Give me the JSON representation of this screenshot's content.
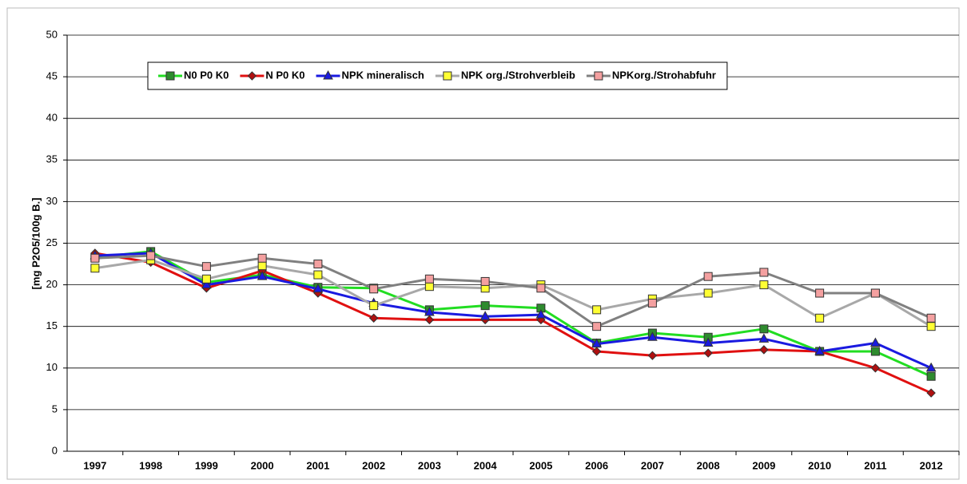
{
  "chart_data": {
    "type": "line",
    "y_label": "[mg P2O5/100g B.]",
    "categories": [
      "1997",
      "1998",
      "1999",
      "2000",
      "2001",
      "2002",
      "2003",
      "2004",
      "2005",
      "2006",
      "2007",
      "2008",
      "2009",
      "2010",
      "2011",
      "2012"
    ],
    "series": [
      {
        "name": "N0 P0 K0",
        "color": "#22dd22",
        "marker_color": "#2e8b2e",
        "marker": "square",
        "values": [
          23.3,
          24,
          20.3,
          21.2,
          19.7,
          19.6,
          17,
          17.5,
          17.2,
          13,
          14.2,
          13.7,
          14.7,
          12,
          12,
          9
        ]
      },
      {
        "name": "N P0 K0",
        "color": "#e01010",
        "marker_color": "#b01010",
        "marker": "diamond",
        "values": [
          23.8,
          22.7,
          19.6,
          21.7,
          19,
          16,
          15.8,
          15.8,
          15.8,
          12,
          11.5,
          11.8,
          12.2,
          12,
          10,
          7
        ]
      },
      {
        "name": "NPK mineralisch",
        "color": "#1a1ae0",
        "marker_color": "#1a1ae0",
        "marker": "triangle",
        "values": [
          23.5,
          23.8,
          20,
          21,
          19.5,
          17.8,
          16.7,
          16.2,
          16.4,
          12.9,
          13.7,
          13,
          13.5,
          12,
          13,
          10
        ]
      },
      {
        "name": "NPK org./Strohverbleib",
        "color": "#a8a8a8",
        "marker_color": "#ffff33",
        "marker": "square",
        "values": [
          22,
          23,
          20.7,
          22.3,
          21.2,
          17.5,
          19.8,
          19.6,
          20,
          17,
          18.3,
          19,
          20,
          16,
          19,
          15
        ]
      },
      {
        "name": "NPKorg./Strohabfuhr",
        "color": "#808080",
        "marker_color": "#f4a0a0",
        "marker": "square",
        "values": [
          23.2,
          23.5,
          22.2,
          23.2,
          22.5,
          19.5,
          20.7,
          20.4,
          19.6,
          15,
          17.8,
          21,
          21.5,
          19,
          19,
          16
        ]
      }
    ],
    "ylim": [
      0,
      50
    ],
    "yticks": [
      0,
      5,
      10,
      15,
      20,
      25,
      30,
      35,
      40,
      45,
      50
    ],
    "grid": true,
    "legend": "top"
  }
}
